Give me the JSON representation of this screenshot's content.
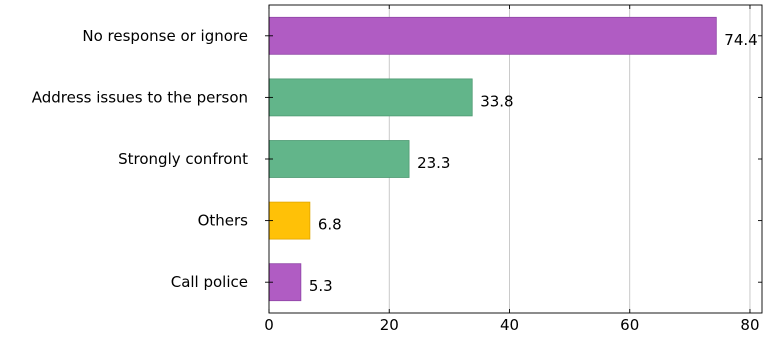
{
  "chart_data": {
    "type": "bar",
    "orientation": "horizontal",
    "categories": [
      "No response or ignore",
      "Address issues to the person",
      "Strongly confront",
      "Others",
      "Call police"
    ],
    "values": [
      74.4,
      33.8,
      23.3,
      6.8,
      5.3
    ],
    "data_labels": [
      "74.4",
      "33.8",
      "23.3",
      "6.8",
      "5.3"
    ],
    "bar_colors": [
      "#b05cc3",
      "#62b58a",
      "#62b58a",
      "#ffc107",
      "#b05cc3"
    ],
    "bar_edge_colors": [
      "#8e44a6",
      "#4e9a72",
      "#4e9a72",
      "#e0a600",
      "#8e44a6"
    ],
    "xlim": [
      0,
      82
    ],
    "xticks": [
      0,
      20,
      40,
      60,
      80
    ],
    "xtick_labels": [
      "0",
      "20",
      "40",
      "60",
      "80"
    ],
    "grid": "vertical",
    "title": "",
    "xlabel": "",
    "ylabel": ""
  }
}
